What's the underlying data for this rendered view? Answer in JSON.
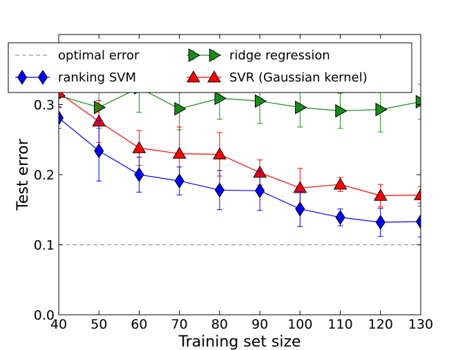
{
  "chart_data": {
    "type": "line",
    "title": "",
    "xlabel": "Training set size",
    "ylabel": "Test error",
    "xlim": [
      40,
      130
    ],
    "ylim": [
      0.0,
      0.4
    ],
    "x_ticks": [
      40,
      50,
      60,
      70,
      80,
      90,
      100,
      110,
      120,
      130
    ],
    "x_tick_labels": [
      "40",
      "50",
      "60",
      "70",
      "80",
      "90",
      "100",
      "110",
      "120",
      "130"
    ],
    "y_ticks": [
      0.0,
      0.1,
      0.2,
      0.3
    ],
    "y_tick_labels": [
      "0.0",
      "0.1",
      "0.2",
      "0.3"
    ],
    "grid": false,
    "legend_position": "top",
    "reference_lines": [
      {
        "name": "optimal error",
        "y": 0.1,
        "color": "#999999",
        "style": "dashed"
      }
    ],
    "x": [
      40,
      50,
      60,
      70,
      80,
      90,
      100,
      110,
      120,
      130
    ],
    "series": [
      {
        "name": "ridge regression",
        "color": "#1a8a1a",
        "marker": "triangle-right",
        "values": [
          0.313,
          0.296,
          0.324,
          0.294,
          0.309,
          0.305,
          0.296,
          0.291,
          0.293,
          0.304
        ],
        "errors": [
          0.03,
          0.03,
          0.035,
          0.03,
          0.03,
          0.032,
          0.028,
          0.025,
          0.032,
          0.025
        ]
      },
      {
        "name": "SVR  (Gaussian kernel)",
        "color": "#ff0000",
        "marker": "triangle-up",
        "values": [
          0.317,
          0.276,
          0.238,
          0.23,
          0.229,
          0.203,
          0.181,
          0.186,
          0.17,
          0.171
        ],
        "errors": [
          0.02,
          0.03,
          0.025,
          0.038,
          0.031,
          0.018,
          0.028,
          0.01,
          0.016,
          0.012
        ]
      },
      {
        "name": "ranking SVM",
        "color": "#0000ff",
        "marker": "diamond",
        "values": [
          0.281,
          0.234,
          0.2,
          0.191,
          0.178,
          0.177,
          0.151,
          0.139,
          0.132,
          0.133
        ],
        "errors": [
          0.015,
          0.043,
          0.025,
          0.02,
          0.028,
          0.028,
          0.025,
          0.012,
          0.02,
          0.022
        ]
      }
    ],
    "legend": [
      {
        "label": "optimal error",
        "ref": "optimal error"
      },
      {
        "label": "ridge regression",
        "ref": "ridge regression"
      },
      {
        "label": "ranking SVM",
        "ref": "ranking SVM"
      },
      {
        "label": "SVR  (Gaussian kernel)",
        "ref": "SVR  (Gaussian kernel)"
      }
    ]
  }
}
